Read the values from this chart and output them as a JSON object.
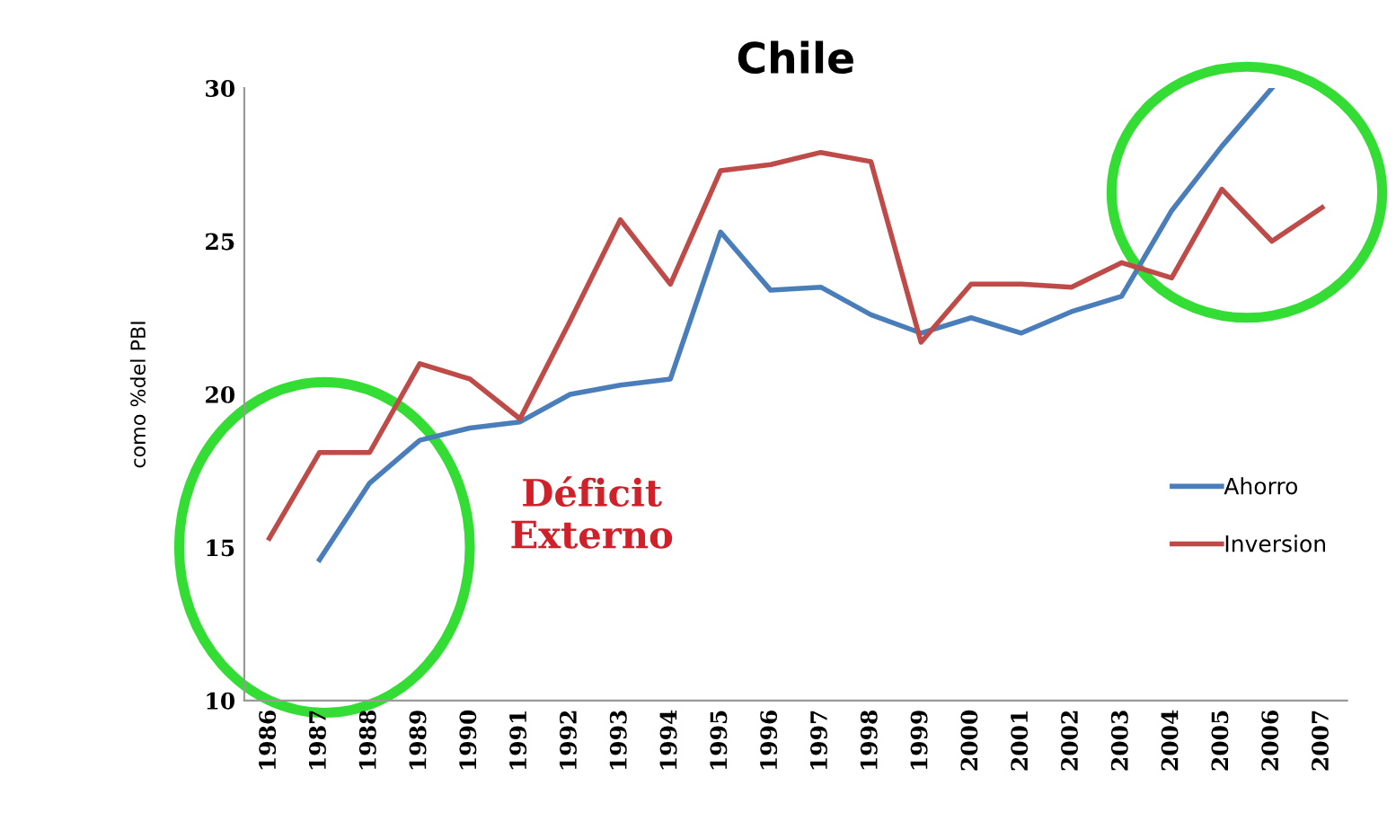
{
  "chart_data": {
    "type": "line",
    "title": "Chile",
    "ylabel": "como %del PBI",
    "categories": [
      "1986",
      "1987",
      "1988",
      "1989",
      "1990",
      "1991",
      "1992",
      "1993",
      "1994",
      "1995",
      "1996",
      "1997",
      "1998",
      "1999",
      "2000",
      "2001",
      "2002",
      "2003",
      "2004",
      "2005",
      "2006",
      "2007"
    ],
    "series": [
      {
        "name": "Ahorro",
        "color": "#4a7ebb",
        "values": [
          null,
          14.6,
          17.1,
          18.5,
          18.9,
          19.1,
          20.0,
          20.3,
          20.5,
          25.3,
          23.4,
          23.5,
          22.6,
          22.0,
          22.5,
          22.0,
          22.7,
          23.2,
          26.0,
          28.1,
          30.0,
          null
        ]
      },
      {
        "name": "Inversion",
        "color": "#be4b48",
        "values": [
          15.3,
          18.1,
          18.1,
          21.0,
          20.5,
          19.2,
          22.4,
          25.7,
          23.6,
          27.3,
          27.5,
          27.9,
          27.6,
          21.7,
          23.6,
          23.6,
          23.5,
          24.3,
          23.8,
          26.7,
          25.0,
          26.1
        ]
      }
    ],
    "annotations": [
      "Déficit\nExterno"
    ],
    "ylim": [
      10,
      30
    ],
    "yticks": [
      10,
      15,
      20,
      25,
      30
    ],
    "grid": false,
    "legend": "right",
    "marker": "none",
    "line_style": "solid"
  }
}
